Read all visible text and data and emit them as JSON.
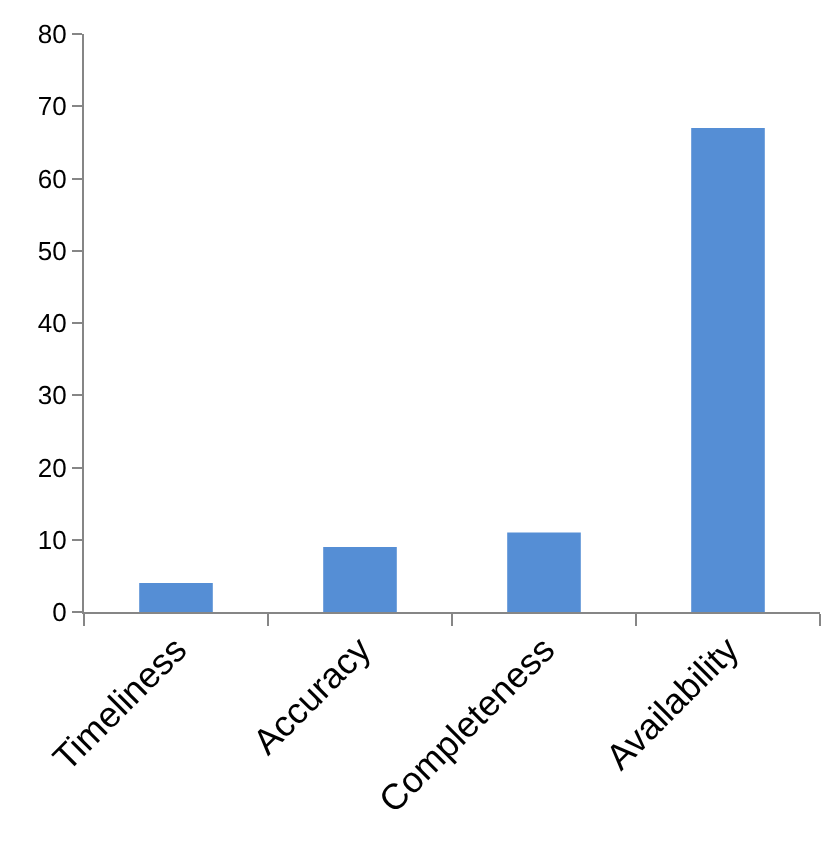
{
  "chart_data": {
    "type": "bar",
    "categories": [
      "Timeliness",
      "Accuracy",
      "Completeness",
      "Availability"
    ],
    "values": [
      4,
      9,
      11,
      67
    ],
    "color": "#558ed5",
    "ylim": [
      0,
      80
    ],
    "yticks": [
      0,
      10,
      20,
      30,
      40,
      50,
      60,
      70,
      80
    ],
    "grid": false,
    "legend": false
  }
}
